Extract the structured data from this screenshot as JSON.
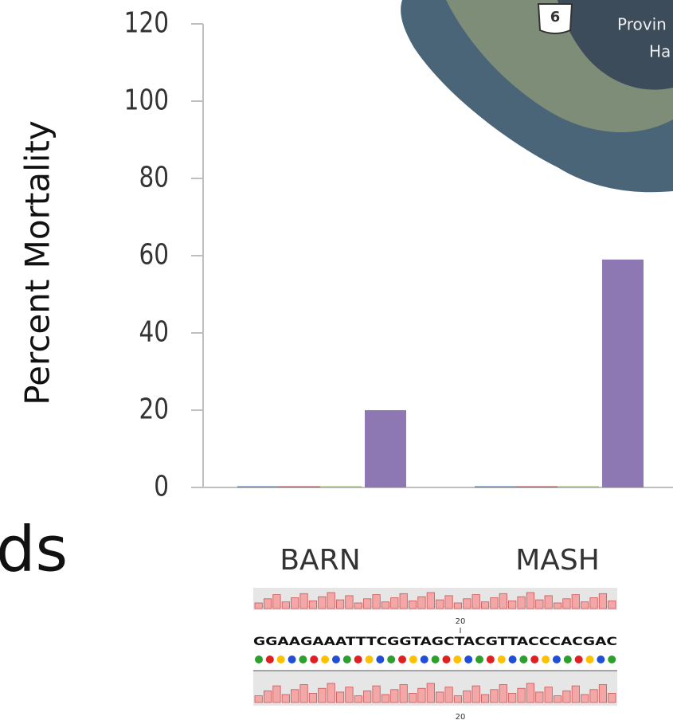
{
  "chart_data": {
    "type": "bar",
    "y_label": "Percent Mortality",
    "categories": [
      "BARN",
      "MASH"
    ],
    "series": [
      {
        "color": "#4f81bd",
        "values": [
          0.3,
          0.3
        ]
      },
      {
        "color": "#c0504d",
        "values": [
          0.3,
          0.3
        ]
      },
      {
        "color": "#9bbb59",
        "values": [
          0.3,
          0.3
        ]
      },
      {
        "color": "#8e78b4",
        "values": [
          20,
          59
        ]
      }
    ],
    "ylim": [
      0,
      120
    ],
    "yticks": [
      0,
      20,
      40,
      60,
      80,
      100,
      120
    ]
  },
  "slide": {
    "fragment": "ds",
    "map_labels": [
      "6",
      "Provin",
      "Ha"
    ],
    "sequence": "GGAAGAAATTTCGGTAGCTACGTTACCCACGAC",
    "sequence_ticks": [
      "20",
      "20"
    ]
  }
}
